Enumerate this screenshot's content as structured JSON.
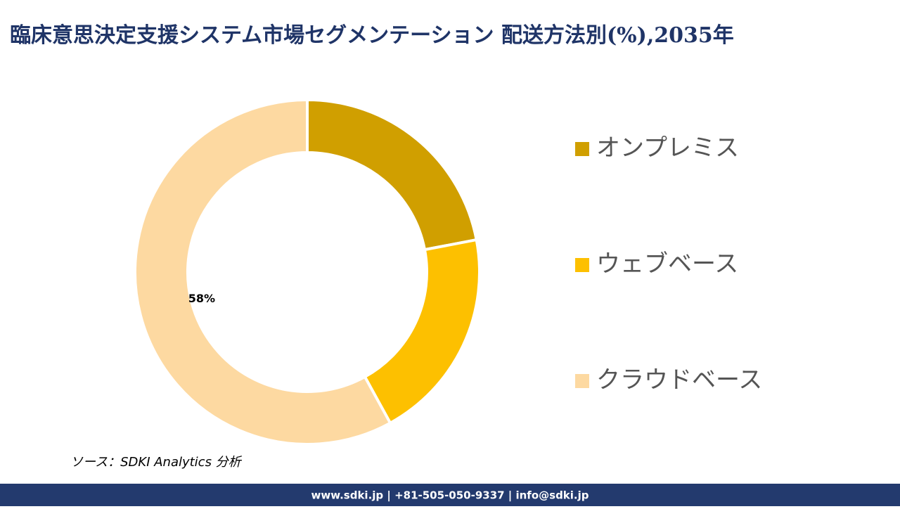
{
  "chart_data": {
    "type": "pie",
    "title": "臨床意思決定支援システム市場セグメンテーション 配送方法別(%),2035年",
    "categories": [
      "オンプレミス",
      "ウェブベース",
      "クラウドベース"
    ],
    "values": [
      22,
      20,
      58
    ],
    "value_labels": [
      null,
      null,
      "58%"
    ],
    "colors": [
      "#d09f00",
      "#fdc000",
      "#fdd9a1"
    ],
    "donut": true
  },
  "source": "ソース：SDKI Analytics 分析",
  "footer": "www.sdki.jp | +81-505-050-9337 | info@sdki.jp"
}
